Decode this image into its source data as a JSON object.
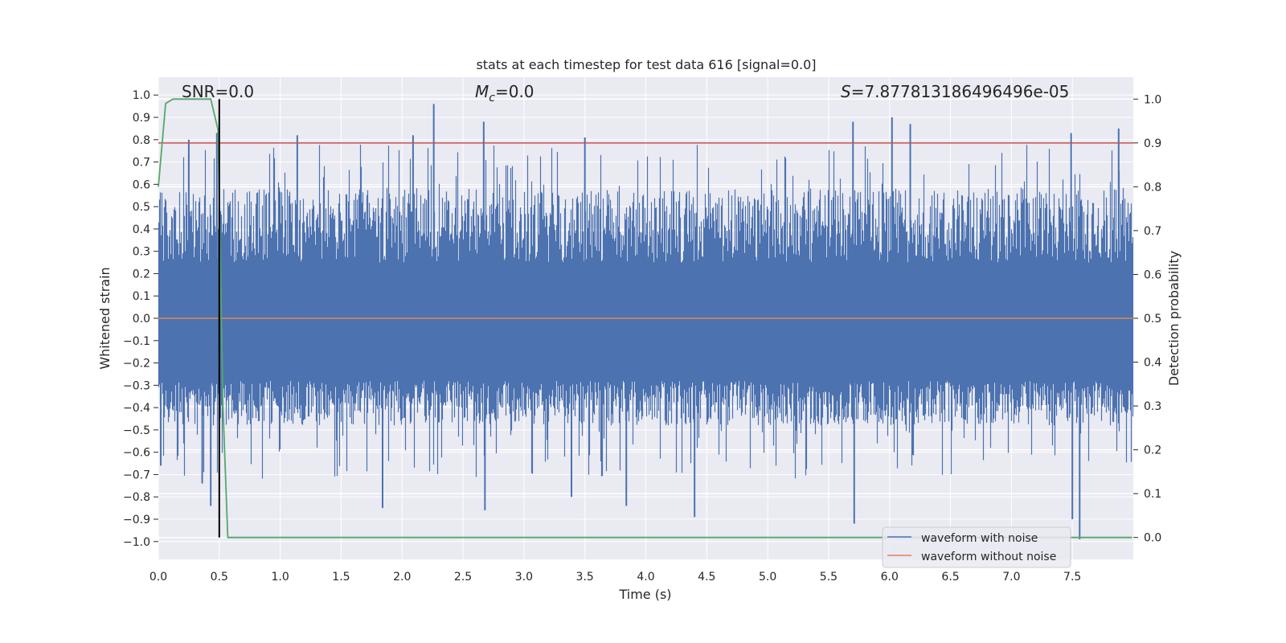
{
  "chart_data": {
    "type": "line",
    "title": "stats at each timestep for test data 616 [signal=0.0]",
    "xlabel": "Time (s)",
    "ylabel": "Whitened strain",
    "y2label": "Detection probability",
    "xlim": [
      0.0,
      8.0
    ],
    "ylim": [
      -1.08,
      1.08
    ],
    "y2lim": [
      -0.05,
      1.05
    ],
    "x_ticks": [
      "0.0",
      "0.5",
      "1.0",
      "1.5",
      "2.0",
      "2.5",
      "3.0",
      "3.5",
      "4.0",
      "4.5",
      "5.0",
      "5.5",
      "6.0",
      "6.5",
      "7.0",
      "7.5"
    ],
    "y_ticks": [
      "1.0",
      "0.9",
      "0.8",
      "0.7",
      "0.6",
      "0.5",
      "0.4",
      "0.3",
      "0.2",
      "0.1",
      "0.0",
      "−0.1",
      "−0.2",
      "−0.3",
      "−0.4",
      "−0.5",
      "−0.6",
      "−0.7",
      "−0.8",
      "−0.9",
      "−1.0"
    ],
    "y2_ticks": [
      "1.0",
      "0.9",
      "0.8",
      "0.7",
      "0.6",
      "0.5",
      "0.4",
      "0.3",
      "0.2",
      "0.1",
      "0.0"
    ],
    "annotations": {
      "snr": "SNR=0.0",
      "mc_symbol": "M",
      "mc_sub": "c",
      "mc_value": "=0.0",
      "s_symbol": "S",
      "s_value": "=7.877813186496496e-05"
    },
    "series": [
      {
        "name": "waveform with noise",
        "color": "#4c72b0",
        "description": "dense whitened noise, band roughly -0.45 to 0.55 with spikes up to ~0.95 and down to ~-0.92"
      },
      {
        "name": "waveform without noise",
        "color": "#dd8452",
        "value": 0.0
      }
    ],
    "noise_peaks": [
      {
        "t": 0.02,
        "v": -0.66
      },
      {
        "t": 0.25,
        "v": 0.8
      },
      {
        "t": 0.36,
        "v": -0.74
      },
      {
        "t": 0.43,
        "v": -0.84
      },
      {
        "t": 0.48,
        "v": 0.83
      },
      {
        "t": 1.14,
        "v": 0.82
      },
      {
        "t": 1.84,
        "v": -0.85
      },
      {
        "t": 2.09,
        "v": 0.82
      },
      {
        "t": 2.26,
        "v": 0.96
      },
      {
        "t": 2.67,
        "v": 0.88
      },
      {
        "t": 2.68,
        "v": -0.86
      },
      {
        "t": 3.5,
        "v": 0.81
      },
      {
        "t": 3.39,
        "v": -0.8
      },
      {
        "t": 3.84,
        "v": -0.84
      },
      {
        "t": 4.4,
        "v": -0.89
      },
      {
        "t": 5.7,
        "v": 0.88
      },
      {
        "t": 5.71,
        "v": -0.92
      },
      {
        "t": 6.02,
        "v": 0.9
      },
      {
        "t": 6.17,
        "v": 0.87
      },
      {
        "t": 7.49,
        "v": 0.83
      },
      {
        "t": 7.5,
        "v": -0.9
      },
      {
        "t": 7.56,
        "v": -0.99
      },
      {
        "t": 7.88,
        "v": 0.85
      }
    ],
    "threshold": {
      "name": "threshold",
      "axis": "right",
      "value": 0.9,
      "color": "#c44e52"
    },
    "detection_probability": {
      "axis": "right",
      "color": "#55a868",
      "t": [
        0.0,
        0.06,
        0.12,
        0.2,
        0.3,
        0.43,
        0.49,
        0.53,
        0.57,
        7.99
      ],
      "p": [
        0.8,
        0.99,
        1.0,
        1.0,
        1.0,
        1.0,
        0.93,
        0.3,
        0.0,
        0.0
      ]
    },
    "marker_line": {
      "t": 0.5,
      "color": "#000000"
    },
    "legend": {
      "position": "lower-right",
      "entries": [
        "waveform with noise",
        "waveform without noise"
      ]
    },
    "grid": true,
    "background": "#eaeaf2"
  }
}
